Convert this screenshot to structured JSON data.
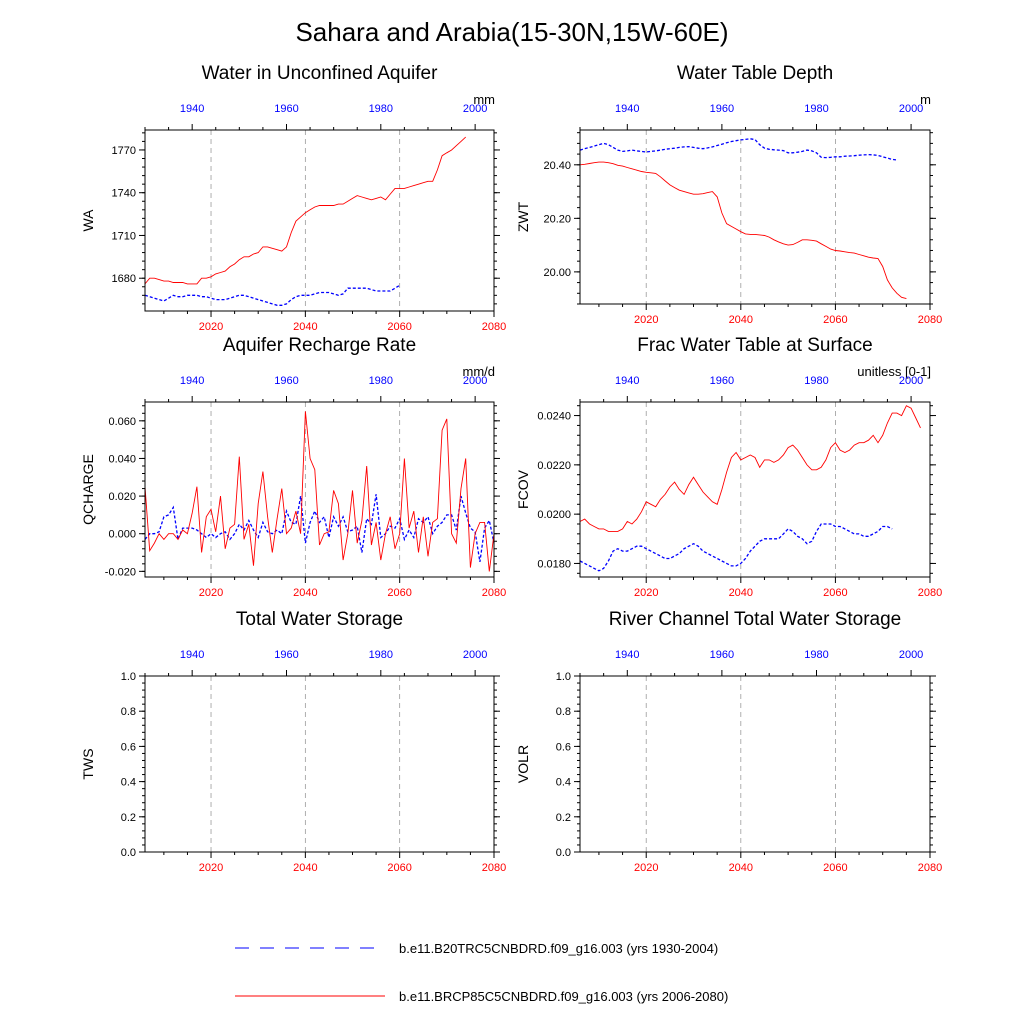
{
  "figure": {
    "title": "Sahara and Arabia(15-30N,15W-60E)",
    "legend": [
      {
        "label": "b.e11.B20TRC5CNBDRD.f09_g16.003 (yrs 1930-2004)",
        "color": "#0000ff",
        "style": "dash"
      },
      {
        "label": "b.e11.BRCP85C5CNBDRD.f09_g16.003 (yrs 2006-2080)",
        "color": "#ff0000",
        "style": "solid"
      }
    ]
  },
  "chart_data": [
    {
      "type": "line",
      "title": "Water in Unconfined Aquifer",
      "ylabel": "WA",
      "units": "mm",
      "ylim": [
        1657,
        1784
      ],
      "yticks": [
        1680,
        1710,
        1740,
        1770
      ],
      "ytick_labels": [
        "1680",
        "1710",
        "1740",
        "1770"
      ],
      "bottom_axis": {
        "xlim": [
          2006,
          2080
        ],
        "ticks": [
          2020,
          2040,
          2060,
          2080
        ],
        "color": "#ff0000"
      },
      "top_axis": {
        "xlim": [
          1930,
          2004
        ],
        "ticks": [
          1940,
          1960,
          1980,
          2000
        ],
        "color": "#0000ff"
      },
      "series": [
        {
          "color": "#0000ff",
          "style": "dash",
          "x_start": 1930,
          "values": [
            1668,
            1667,
            1666,
            1665,
            1664,
            1666,
            1668,
            1667,
            1667,
            1668,
            1668,
            1668,
            1667,
            1667,
            1666,
            1665,
            1665,
            1665,
            1666,
            1667,
            1668,
            1668,
            1667,
            1666,
            1665,
            1664,
            1663,
            1662,
            1661,
            1661,
            1662,
            1665,
            1667,
            1668,
            1668,
            1668,
            1669,
            1670,
            1670,
            1670,
            1669,
            1668,
            1669,
            1673,
            1673,
            1673,
            1673,
            1673,
            1672,
            1671,
            1671,
            1671,
            1671,
            1673,
            1675
          ]
        },
        {
          "color": "#ff0000",
          "style": "solid",
          "x_start": 2006,
          "values": [
            1676,
            1680,
            1680,
            1679,
            1678,
            1678,
            1677,
            1677,
            1677,
            1676,
            1676,
            1676,
            1680,
            1680,
            1681,
            1683,
            1684,
            1685,
            1688,
            1690,
            1693,
            1695,
            1695,
            1697,
            1698,
            1702,
            1702,
            1701,
            1700,
            1699,
            1702,
            1712,
            1720,
            1723,
            1726,
            1728,
            1730,
            1731,
            1731,
            1731,
            1731,
            1732,
            1732,
            1734,
            1736,
            1738,
            1737,
            1736,
            1735,
            1736,
            1737,
            1735,
            1739,
            1743,
            1743,
            1743,
            1744,
            1745,
            1746,
            1747,
            1748,
            1748,
            1756,
            1766,
            1768,
            1770,
            1773,
            1776,
            1779
          ]
        }
      ]
    },
    {
      "type": "line",
      "title": "Water Table Depth",
      "ylabel": "ZWT",
      "units": "m",
      "ylim": [
        19.88,
        20.53
      ],
      "yticks": [
        20.0,
        20.2,
        20.4
      ],
      "ytick_labels": [
        "20.00",
        "20.20",
        "20.40"
      ],
      "bottom_axis": {
        "xlim": [
          2006,
          2080
        ],
        "ticks": [
          2020,
          2040,
          2060,
          2080
        ],
        "color": "#ff0000"
      },
      "top_axis": {
        "xlim": [
          1930,
          2004
        ],
        "ticks": [
          1940,
          1960,
          1980,
          2000
        ],
        "color": "#0000ff"
      },
      "series": [
        {
          "color": "#0000ff",
          "style": "dash",
          "x_start": 1930,
          "values": [
            20.455,
            20.46,
            20.465,
            20.47,
            20.475,
            20.48,
            20.475,
            20.465,
            20.455,
            20.45,
            20.452,
            20.455,
            20.452,
            20.45,
            20.448,
            20.45,
            20.452,
            20.455,
            20.458,
            20.46,
            20.462,
            20.465,
            20.467,
            20.468,
            20.465,
            20.462,
            20.46,
            20.463,
            20.467,
            20.472,
            20.477,
            20.482,
            20.487,
            20.49,
            20.493,
            20.495,
            20.497,
            20.494,
            20.475,
            20.462,
            20.458,
            20.456,
            20.455,
            20.453,
            20.445,
            20.445,
            20.447,
            20.45,
            20.455,
            20.452,
            20.445,
            20.428,
            20.427,
            20.428,
            20.43,
            20.43,
            20.432,
            20.433,
            20.434,
            20.436,
            20.437,
            20.438,
            20.437,
            20.435,
            20.43,
            20.425,
            20.42,
            20.418
          ]
        },
        {
          "color": "#ff0000",
          "style": "solid",
          "x_start": 2006,
          "values": [
            20.4,
            20.402,
            20.405,
            20.408,
            20.41,
            20.41,
            20.408,
            20.404,
            20.398,
            20.395,
            20.39,
            20.385,
            20.38,
            20.375,
            20.372,
            20.37,
            20.368,
            20.355,
            20.34,
            20.325,
            20.315,
            20.305,
            20.3,
            20.295,
            20.29,
            20.29,
            20.292,
            20.296,
            20.3,
            20.28,
            20.22,
            20.18,
            20.17,
            20.16,
            20.15,
            20.142,
            20.14,
            20.14,
            20.138,
            20.136,
            20.13,
            20.12,
            20.112,
            20.105,
            20.1,
            20.102,
            20.11,
            20.12,
            20.12,
            20.118,
            20.115,
            20.105,
            20.095,
            20.085,
            20.08,
            20.078,
            20.075,
            20.072,
            20.07,
            20.065,
            20.06,
            20.055,
            20.052,
            20.05,
            20.02,
            19.97,
            19.94,
            19.92,
            19.905,
            19.9
          ]
        }
      ]
    },
    {
      "type": "line",
      "title": "Aquifer Recharge Rate",
      "ylabel": "QCHARGE",
      "units": "mm/d",
      "ylim": [
        -0.023,
        0.07
      ],
      "yticks": [
        -0.02,
        0.0,
        0.02,
        0.04,
        0.06
      ],
      "ytick_labels": [
        "-0.020",
        "0.000",
        "0.020",
        "0.040",
        "0.060"
      ],
      "bottom_axis": {
        "xlim": [
          2006,
          2080
        ],
        "ticks": [
          2020,
          2040,
          2060,
          2080
        ],
        "color": "#ff0000"
      },
      "top_axis": {
        "xlim": [
          1930,
          2004
        ],
        "ticks": [
          1940,
          1960,
          1980,
          2000
        ],
        "color": "#0000ff"
      },
      "series": [
        {
          "color": "#0000ff",
          "style": "dash",
          "x_start": 1930,
          "values": [
            -0.003,
            0.0,
            0.0,
            0.001,
            0.009,
            0.01,
            0.014,
            -0.003,
            0.003,
            0.003,
            0.003,
            0.002,
            0.0,
            -0.002,
            0.0,
            -0.002,
            0.0,
            0.001,
            -0.003,
            0.0,
            0.005,
            0.002,
            0.007,
            0.002,
            -0.002,
            0.006,
            0.001,
            0.0,
            0.002,
            0.0,
            0.012,
            0.006,
            0.005,
            0.02,
            -0.005,
            0.006,
            0.012,
            0.006,
            0.009,
            -0.002,
            0.009,
            0.004,
            0.009,
            0.001,
            0.002,
            0.004,
            -0.01,
            0.008,
            0.005,
            0.021,
            -0.002,
            0.0,
            0.004,
            0.003,
            0.008,
            -0.003,
            0.002,
            -0.002,
            0.008,
            0.006,
            0.009,
            0.0,
            0.004,
            0.006,
            0.01,
            0.01,
            0.002,
            0.02,
            0.011,
            0.003,
            0.001,
            -0.015,
            0.003,
            0.007,
            -0.005
          ]
        },
        {
          "color": "#ff0000",
          "style": "solid",
          "x_start": 2006,
          "values": [
            0.025,
            -0.009,
            -0.005,
            0.0,
            -0.003,
            0.0,
            0.0,
            -0.003,
            0.002,
            0.0,
            0.011,
            0.025,
            -0.01,
            0.009,
            0.013,
            0.001,
            0.02,
            -0.008,
            0.003,
            0.005,
            0.041,
            -0.003,
            0.005,
            -0.017,
            0.016,
            0.033,
            0.009,
            -0.01,
            0.008,
            0.024,
            0.0,
            0.003,
            0.012,
            0.0,
            0.065,
            0.04,
            0.034,
            -0.006,
            0.0,
            0.001,
            0.023,
            0.016,
            -0.014,
            0.0,
            0.023,
            -0.005,
            0.007,
            0.036,
            -0.006,
            0.006,
            -0.014,
            0.0,
            0.009,
            -0.008,
            0.0,
            0.04,
            0.003,
            0.012,
            -0.01,
            0.009,
            -0.012,
            0.006,
            0.008,
            0.055,
            0.061,
            0.0,
            -0.005,
            0.024,
            0.04,
            -0.018,
            0.0,
            0.006,
            0.006,
            -0.02,
            0.0
          ]
        }
      ]
    },
    {
      "type": "line",
      "title": "Frac Water Table at Surface",
      "ylabel": "FCOV",
      "units": "unitless [0-1]",
      "ylim": [
        0.01745,
        0.02455
      ],
      "yticks": [
        0.018,
        0.02,
        0.022,
        0.024
      ],
      "ytick_labels": [
        "0.0180",
        "0.0200",
        "0.0220",
        "0.0240"
      ],
      "bottom_axis": {
        "xlim": [
          2006,
          2080
        ],
        "ticks": [
          2020,
          2040,
          2060,
          2080
        ],
        "color": "#ff0000"
      },
      "top_axis": {
        "xlim": [
          1930,
          2004
        ],
        "ticks": [
          1940,
          1960,
          1980,
          2000
        ],
        "color": "#0000ff"
      },
      "series": [
        {
          "color": "#0000ff",
          "style": "dash",
          "x_start": 1930,
          "values": [
            0.0181,
            0.018,
            0.0179,
            0.0178,
            0.0177,
            0.0178,
            0.0181,
            0.0185,
            0.0186,
            0.0185,
            0.0185,
            0.0186,
            0.0187,
            0.0187,
            0.0186,
            0.0185,
            0.0184,
            0.0183,
            0.0182,
            0.0182,
            0.0183,
            0.0184,
            0.0186,
            0.0187,
            0.0188,
            0.0187,
            0.0185,
            0.0184,
            0.0183,
            0.0182,
            0.0181,
            0.018,
            0.0179,
            0.0179,
            0.018,
            0.0182,
            0.0185,
            0.0187,
            0.0189,
            0.019,
            0.019,
            0.019,
            0.019,
            0.0192,
            0.0194,
            0.0193,
            0.0191,
            0.019,
            0.0188,
            0.0189,
            0.0193,
            0.0196,
            0.0196,
            0.0196,
            0.0195,
            0.0195,
            0.0194,
            0.0193,
            0.0192,
            0.0192,
            0.0191,
            0.0191,
            0.0192,
            0.0193,
            0.0195,
            0.0195,
            0.0194
          ]
        },
        {
          "color": "#ff0000",
          "style": "solid",
          "x_start": 2006,
          "values": [
            0.0197,
            0.0198,
            0.0196,
            0.0195,
            0.0194,
            0.0194,
            0.0193,
            0.0193,
            0.0193,
            0.0194,
            0.0197,
            0.0196,
            0.0198,
            0.0201,
            0.0205,
            0.0204,
            0.0203,
            0.0206,
            0.0208,
            0.0211,
            0.0213,
            0.021,
            0.0208,
            0.0212,
            0.0215,
            0.0212,
            0.0209,
            0.0207,
            0.0205,
            0.0204,
            0.021,
            0.0217,
            0.0223,
            0.0225,
            0.0222,
            0.0223,
            0.0224,
            0.0223,
            0.0219,
            0.0222,
            0.0222,
            0.0221,
            0.0222,
            0.0224,
            0.0227,
            0.0228,
            0.0226,
            0.0223,
            0.022,
            0.0218,
            0.0218,
            0.0219,
            0.0222,
            0.0227,
            0.0229,
            0.0226,
            0.0225,
            0.0226,
            0.0228,
            0.0229,
            0.0229,
            0.023,
            0.0232,
            0.0229,
            0.0232,
            0.0237,
            0.0241,
            0.0241,
            0.024,
            0.0244,
            0.0243,
            0.0239,
            0.0235
          ]
        }
      ]
    },
    {
      "type": "line",
      "title": "Total Water Storage",
      "ylabel": "TWS",
      "units": "",
      "ylim": [
        0,
        1
      ],
      "yticks": [
        0,
        0.2,
        0.4,
        0.6,
        0.8,
        1.0
      ],
      "ytick_labels": [
        "0.0",
        "0.2",
        "0.4",
        "0.6",
        "0.8",
        "1.0"
      ],
      "bottom_axis": {
        "xlim": [
          2006,
          2080
        ],
        "ticks": [
          2020,
          2040,
          2060,
          2080
        ],
        "color": "#ff0000"
      },
      "top_axis": {
        "xlim": [
          1930,
          2004
        ],
        "ticks": [
          1940,
          1960,
          1980,
          2000
        ],
        "color": "#0000ff"
      },
      "series": []
    },
    {
      "type": "line",
      "title": "River Channel Total Water Storage",
      "ylabel": "VOLR",
      "units": "",
      "ylim": [
        0,
        1
      ],
      "yticks": [
        0,
        0.2,
        0.4,
        0.6,
        0.8,
        1.0
      ],
      "ytick_labels": [
        "0.0",
        "0.2",
        "0.4",
        "0.6",
        "0.8",
        "1.0"
      ],
      "bottom_axis": {
        "xlim": [
          2006,
          2080
        ],
        "ticks": [
          2020,
          2040,
          2060,
          2080
        ],
        "color": "#ff0000"
      },
      "top_axis": {
        "xlim": [
          1930,
          2004
        ],
        "ticks": [
          1940,
          1960,
          1980,
          2000
        ],
        "color": "#0000ff"
      },
      "series": []
    }
  ]
}
